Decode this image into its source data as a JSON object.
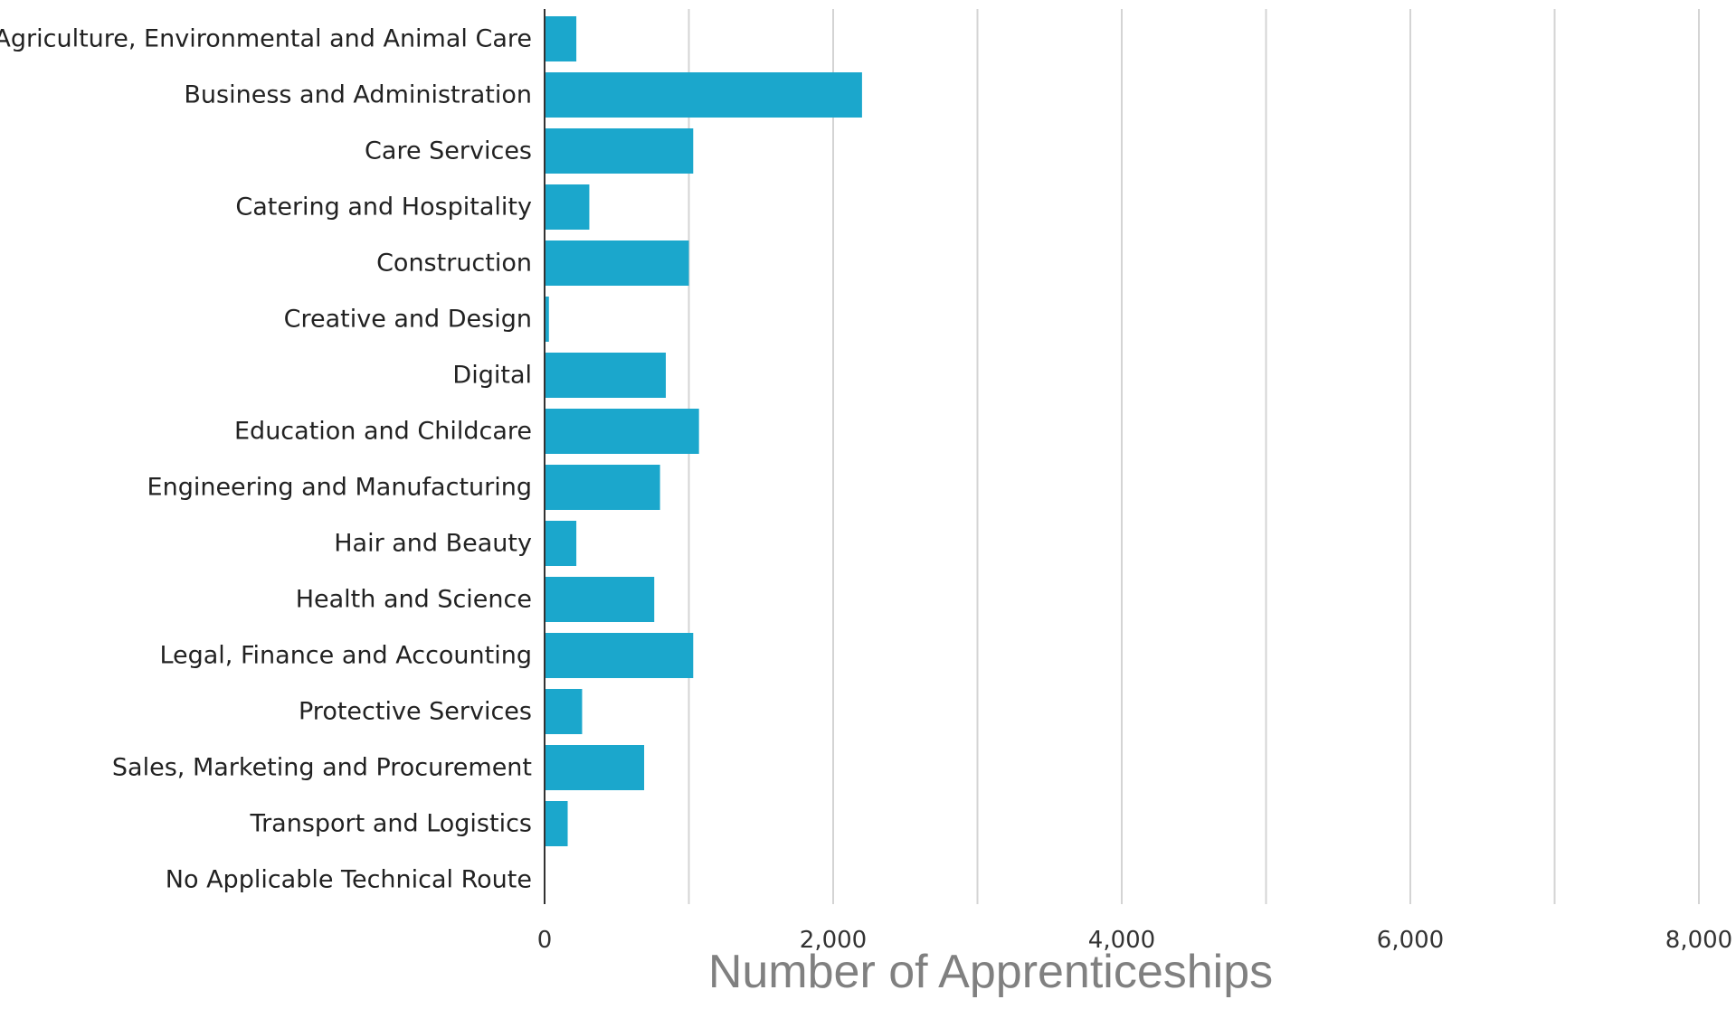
{
  "chart_data": {
    "type": "bar",
    "orientation": "horizontal",
    "categories": [
      "Agriculture, Environmental and Animal Care",
      "Business and Administration",
      "Care Services",
      "Catering and Hospitality",
      "Construction",
      "Creative and Design",
      "Digital",
      "Education and Childcare",
      "Engineering and Manufacturing",
      "Hair and Beauty",
      "Health and Science",
      "Legal, Finance and Accounting",
      "Protective Services",
      "Sales, Marketing and Procurement",
      "Transport and Logistics",
      "No Applicable Technical Route"
    ],
    "values": [
      220,
      2200,
      1030,
      310,
      1000,
      30,
      840,
      1070,
      800,
      220,
      760,
      1030,
      260,
      690,
      160,
      0
    ],
    "xlabel": "Number of Apprenticeships",
    "xlim": [
      0,
      8000
    ],
    "x_ticks": [
      0,
      2000,
      4000,
      6000,
      8000
    ],
    "x_tick_labels": [
      "0",
      "2,000",
      "4,000",
      "6,000",
      "8,000"
    ],
    "grid_step": 1000,
    "grid": true,
    "legend": "none",
    "bar_color": "#1ba7cc",
    "grid_color": "#d4d4d4",
    "axis_color": "#333333"
  }
}
